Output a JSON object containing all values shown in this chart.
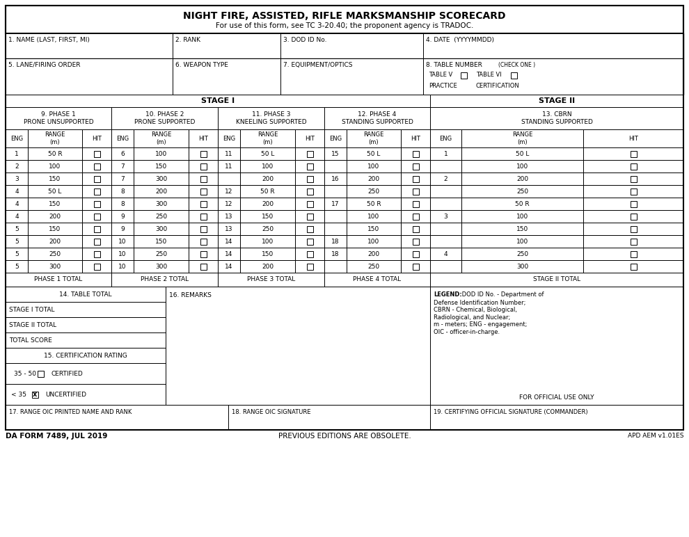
{
  "title": "NIGHT FIRE, ASSISTED, RIFLE MARKSMANSHIP SCORECARD",
  "subtitle": "For use of this form, see TC 3-20.40; the proponent agency is TRADOC.",
  "row1_labels": [
    "1. NAME (LAST, FIRST, MI)",
    "2. RANK",
    "3. DOD ID No.",
    "4. DATE  (YYYYMMDD)"
  ],
  "row2_labels": [
    "5. LANE/FIRING ORDER",
    "6. WEAPON TYPE",
    "7. EQUIPMENT/OPTICS",
    "8. TABLE NUMBER"
  ],
  "stage_i_label": "STAGE I",
  "stage_ii_label": "STAGE II",
  "phase_headers": [
    "9. PHASE 1\nPRONE UNSUPPORTED",
    "10. PHASE 2\nPRONE SUPPORTED",
    "11. PHASE 3\nKNEELING SUPPORTED",
    "12. PHASE 4\nSTANDING SUPPORTED",
    "13. CBRN\nSTANDING SUPPORTED"
  ],
  "phase1_data": [
    [
      "1",
      "50 R"
    ],
    [
      "2",
      "100"
    ],
    [
      "3",
      "150"
    ],
    [
      "4",
      "50 L"
    ],
    [
      "4",
      "150"
    ],
    [
      "4",
      "200"
    ],
    [
      "5",
      "150"
    ],
    [
      "5",
      "200"
    ],
    [
      "5",
      "250"
    ],
    [
      "5",
      "300"
    ]
  ],
  "phase2_data": [
    [
      "6",
      "100"
    ],
    [
      "7",
      "150"
    ],
    [
      "7",
      "300"
    ],
    [
      "8",
      "200"
    ],
    [
      "8",
      "300"
    ],
    [
      "9",
      "250"
    ],
    [
      "9",
      "300"
    ],
    [
      "10",
      "150"
    ],
    [
      "10",
      "250"
    ],
    [
      "10",
      "300"
    ]
  ],
  "phase3_data": [
    [
      "11",
      "50 L"
    ],
    [
      "11",
      "100"
    ],
    [
      "",
      "200"
    ],
    [
      "12",
      "50 R"
    ],
    [
      "12",
      "200"
    ],
    [
      "13",
      "150"
    ],
    [
      "13",
      "250"
    ],
    [
      "14",
      "100"
    ],
    [
      "14",
      "150"
    ],
    [
      "14",
      "200"
    ]
  ],
  "phase4_data": [
    [
      "15",
      "50 L"
    ],
    [
      "",
      "100"
    ],
    [
      "16",
      "200"
    ],
    [
      "",
      "250"
    ],
    [
      "17",
      "50 R"
    ],
    [
      "",
      "100"
    ],
    [
      "",
      "150"
    ],
    [
      "18",
      "100"
    ],
    [
      "18",
      "200"
    ],
    [
      "",
      "250"
    ]
  ],
  "phase5_data": [
    [
      "1",
      "50 L"
    ],
    [
      "",
      "100"
    ],
    [
      "2",
      "200"
    ],
    [
      "",
      "250"
    ],
    [
      "",
      "50 R"
    ],
    [
      "3",
      "100"
    ],
    [
      "",
      "150"
    ],
    [
      "",
      "100"
    ],
    [
      "4",
      "250"
    ],
    [
      "",
      "300"
    ]
  ],
  "totals_row": [
    "PHASE 1 TOTAL",
    "PHASE 2 TOTAL",
    "PHASE 3 TOTAL",
    "PHASE 4 TOTAL",
    "STAGE II TOTAL"
  ],
  "bottom_left_labels": [
    "14. TABLE TOTAL",
    "STAGE I TOTAL",
    "STAGE II TOTAL",
    "TOTAL SCORE",
    "15. CERTIFICATION RATING"
  ],
  "certified_label": "35 - 50",
  "certified_text": "CERTIFIED",
  "uncertified_label": "< 35",
  "uncertified_text": "UNCERTIFIED",
  "remarks_label": "16. REMARKS",
  "legend_text_bold": "LEGEND:",
  "legend_text_rest": " DOD ID No. - Department of\nDefense Identification Number;\nCBRN - Chemical, Biological,\nRadiological, and Nuclear;\nm - meters; ENG - engagement;\nOIC - officer-in-charge.",
  "official_use": "FOR OFFICIAL USE ONLY",
  "sig_labels": [
    "17. RANGE OIC PRINTED NAME AND RANK",
    "18. RANGE OIC SIGNATURE",
    "19. CERTIFYING OFFICIAL SIGNATURE (COMMANDER)"
  ],
  "footer_left": "DA FORM 7489, JUL 2019",
  "footer_center": "PREVIOUS EDITIONS ARE OBSOLETE.",
  "footer_right": "APD AEM v1.01ES"
}
